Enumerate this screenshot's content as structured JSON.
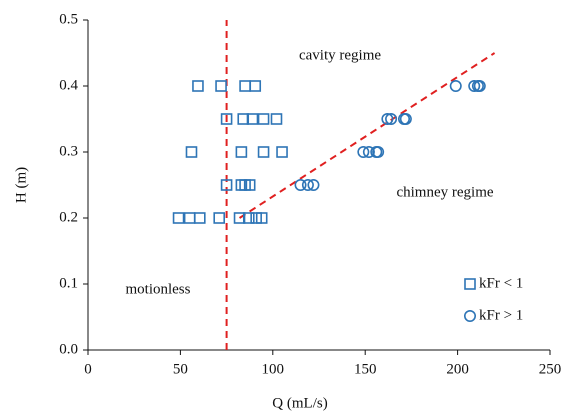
{
  "chart_data": {
    "type": "scatter",
    "x_label": "Q (mL/s)",
    "y_label": "H (m)",
    "xlim": [
      0,
      250
    ],
    "ylim": [
      0,
      0.5
    ],
    "xticks": [
      0,
      50,
      100,
      150,
      200,
      250
    ],
    "yticks": [
      {
        "value": 0,
        "label": "0.0"
      },
      0.1,
      0.2,
      0.3,
      0.4,
      0.5
    ],
    "legend": "lower right",
    "series": [
      {
        "name": "kFr < 1",
        "color": "#2e75b6",
        "marker": "square",
        "x": [
          59.5,
          72,
          85,
          90.5,
          75,
          84,
          89,
          95,
          102,
          56,
          83,
          95,
          105,
          75,
          83,
          85,
          87.5,
          49,
          55,
          60.5,
          71,
          82,
          87,
          91,
          94
        ],
        "y": [
          0.4,
          0.4,
          0.4,
          0.4,
          0.35,
          0.35,
          0.35,
          0.35,
          0.35,
          0.3,
          0.3,
          0.3,
          0.3,
          0.25,
          0.25,
          0.25,
          0.25,
          0.2,
          0.2,
          0.2,
          0.2,
          0.2,
          0.2,
          0.2,
          0.2
        ]
      },
      {
        "name": "kFr > 1",
        "color": "#2e75b6",
        "marker": "circle",
        "x": [
          199,
          209,
          211,
          212,
          162,
          164,
          171,
          172,
          149,
          152,
          156,
          157,
          115,
          119,
          122
        ],
        "y": [
          0.4,
          0.4,
          0.4,
          0.4,
          0.35,
          0.35,
          0.35,
          0.35,
          0.3,
          0.3,
          0.3,
          0.3,
          0.25,
          0.25,
          0.25
        ]
      }
    ],
    "boundaries": [
      {
        "color": "#e02020",
        "x": [
          75,
          75
        ],
        "y": [
          0,
          0.5
        ]
      },
      {
        "color": "#e02020",
        "x": [
          82,
          220
        ],
        "y": [
          0.2,
          0.45
        ]
      }
    ],
    "annotations": [
      "cavity regime",
      "chimney regime",
      "motionless"
    ]
  }
}
